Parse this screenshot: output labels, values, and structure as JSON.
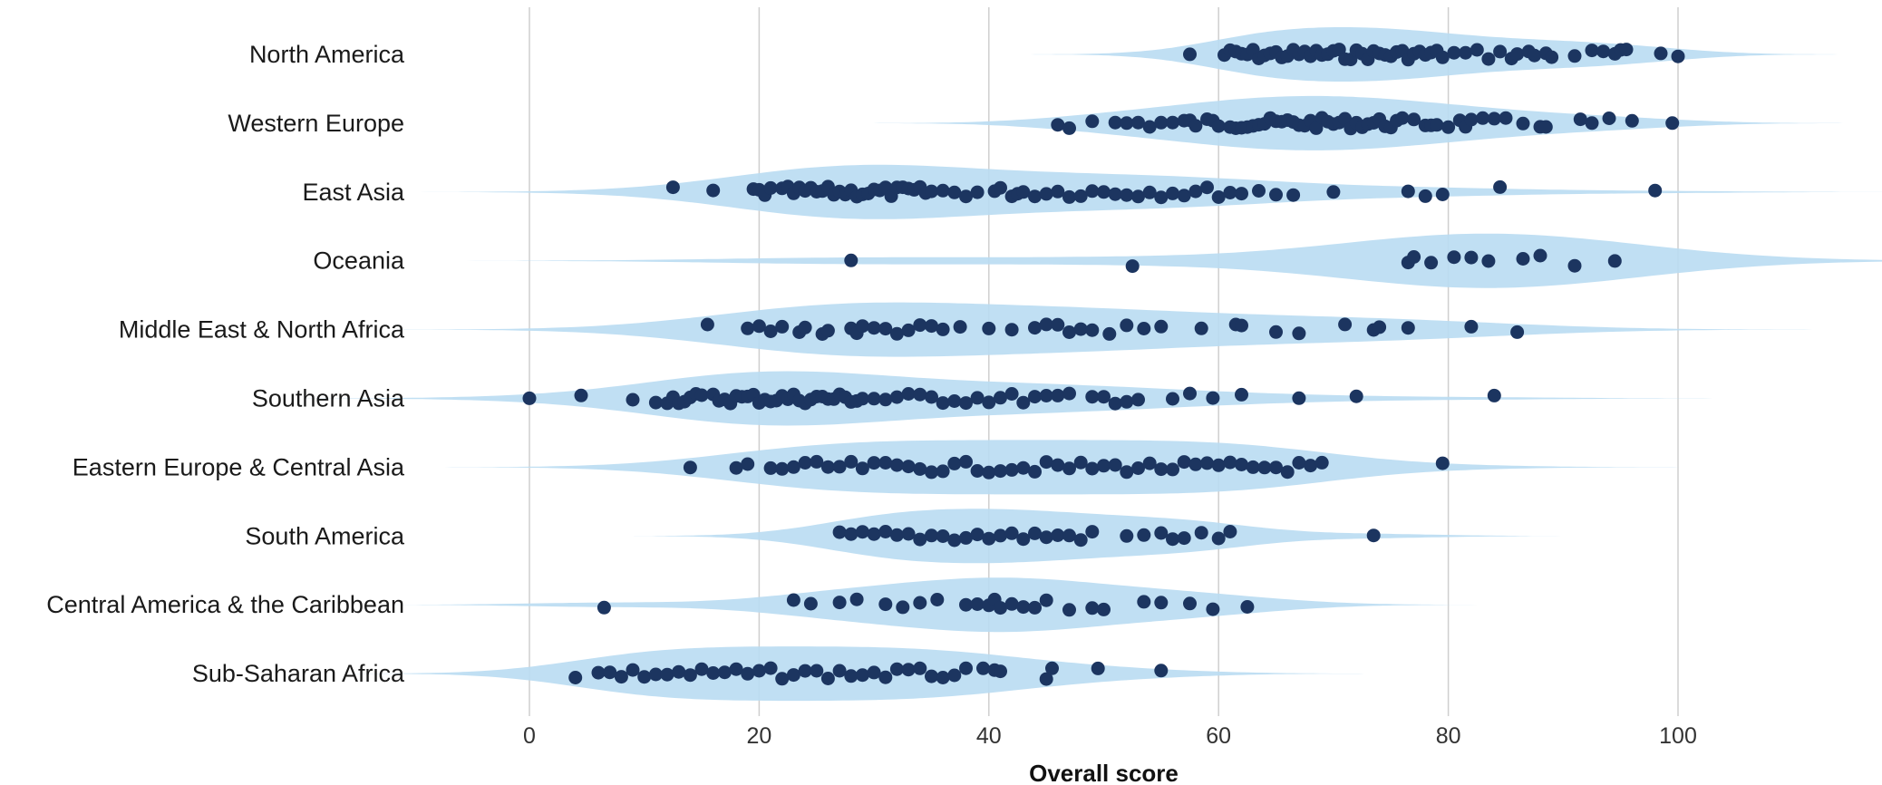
{
  "chart_data": {
    "type": "scatter",
    "subtype": "violin with jittered points",
    "title": "",
    "xlabel": "Overall score",
    "ylabel": "",
    "xlim": [
      -5,
      117
    ],
    "xticks": [
      0,
      20,
      40,
      60,
      80,
      100
    ],
    "grid": "vertical",
    "legend": "none",
    "colors": {
      "point": "#1c3560",
      "violin": "#b9dcf2",
      "grid": "#cfcfcf"
    },
    "series": [
      {
        "category": "North America",
        "peak": 70,
        "values": [
          57.5,
          60.5,
          61,
          61.5,
          62,
          62.5,
          63,
          63.5,
          64,
          64.5,
          65,
          65.5,
          66,
          66.5,
          67,
          67.5,
          68,
          68.5,
          69,
          69.5,
          70,
          70.5,
          71,
          71.5,
          72,
          72.5,
          73,
          73.5,
          74,
          74.5,
          75,
          75.5,
          76,
          76.5,
          77,
          77.5,
          78,
          78.5,
          79,
          79.5,
          80.5,
          81.5,
          82.5,
          83.5,
          84.5,
          85.5,
          86,
          87,
          87.5,
          88.5,
          89,
          91,
          92.5,
          93.5,
          94.5,
          95,
          95.5,
          98.5,
          100
        ]
      },
      {
        "category": "Western Europe",
        "peak": 66,
        "values": [
          46,
          47,
          49,
          51,
          52,
          53,
          54,
          55,
          56,
          57,
          57.5,
          58,
          59,
          59.5,
          60,
          61,
          61.5,
          62,
          62.5,
          63,
          63.5,
          64,
          64.5,
          65,
          65.5,
          66,
          66.5,
          67,
          67.5,
          68,
          68.5,
          69,
          69.5,
          70,
          70.5,
          71,
          71.5,
          72,
          72.5,
          73,
          73.5,
          74,
          74.5,
          75,
          75.5,
          76,
          77,
          78,
          78.5,
          79,
          80,
          81,
          81.5,
          82,
          83,
          84,
          85,
          86.5,
          88,
          88.5,
          91.5,
          92.5,
          94,
          96,
          99.5
        ]
      },
      {
        "category": "East Asia",
        "peak": 30,
        "values": [
          12.5,
          16,
          19.5,
          20,
          20.5,
          21,
          22,
          22.5,
          23,
          23.5,
          24,
          24.5,
          25,
          25.5,
          26,
          26.5,
          27,
          27.5,
          28,
          28.5,
          29,
          29.5,
          30,
          30.5,
          31,
          31.5,
          32,
          32.5,
          33,
          33.5,
          34,
          34.5,
          35,
          36,
          37,
          38,
          39,
          40.5,
          41,
          42,
          42.5,
          43,
          44,
          45,
          46,
          47,
          48,
          49,
          50,
          51,
          52,
          53,
          54,
          55,
          56,
          57,
          58,
          59,
          60,
          61,
          62,
          63.5,
          65,
          66.5,
          70,
          76.5,
          78,
          79.5,
          84.5,
          98
        ]
      },
      {
        "category": "Oceania",
        "peak": 85,
        "values": [
          28,
          52.5,
          76.5,
          77,
          78.5,
          80.5,
          82,
          83.5,
          86.5,
          88,
          91,
          94.5
        ]
      },
      {
        "category": "Middle East & North Africa",
        "peak": 30,
        "values": [
          15.5,
          19,
          20,
          21,
          22,
          23.5,
          24,
          25.5,
          26,
          28,
          28.5,
          29,
          30,
          31,
          32,
          33,
          34,
          35,
          36,
          37.5,
          40,
          42,
          44,
          45,
          46,
          47,
          48,
          49,
          50.5,
          52,
          53.5,
          55,
          58.5,
          61.5,
          62,
          65,
          67,
          71,
          73.5,
          74,
          76.5,
          82,
          86
        ]
      },
      {
        "category": "Southern Asia",
        "peak": 25,
        "values": [
          0,
          4.5,
          9,
          11,
          12,
          12.5,
          13,
          13.5,
          14,
          14.5,
          15,
          16,
          16.5,
          17,
          17.5,
          18,
          18.5,
          19,
          19.5,
          20,
          20.5,
          21,
          21.5,
          22,
          22.5,
          23,
          23.5,
          24,
          24.5,
          25,
          25.5,
          26,
          26.5,
          27,
          27.5,
          28,
          28.5,
          29,
          30,
          31,
          32,
          33,
          34,
          35,
          36,
          37,
          38,
          39,
          40,
          41,
          42,
          43,
          44,
          45,
          46,
          47,
          49,
          50,
          51,
          52,
          53,
          56,
          57.5,
          59.5,
          62,
          67,
          72,
          84
        ]
      },
      {
        "category": "Eastern Europe & Central Asia",
        "peak": 40,
        "values": [
          14,
          18,
          19,
          21,
          22,
          23,
          24,
          25,
          26,
          27,
          28,
          29,
          30,
          31,
          32,
          33,
          34,
          35,
          36,
          37,
          38,
          39,
          40,
          41,
          42,
          43,
          44,
          45,
          46,
          47,
          48,
          49,
          50,
          51,
          52,
          53,
          54,
          55,
          56,
          57,
          58,
          59,
          60,
          61,
          62,
          63,
          64,
          65,
          66,
          67,
          68,
          69,
          79.5
        ]
      },
      {
        "category": "South America",
        "peak": 40,
        "values": [
          27,
          28,
          29,
          30,
          31,
          32,
          33,
          34,
          35,
          36,
          37,
          38,
          39,
          40,
          41,
          42,
          43,
          44,
          45,
          46,
          47,
          48,
          49,
          52,
          53.5,
          55,
          56,
          57,
          58.5,
          60,
          61,
          73.5
        ]
      },
      {
        "category": "Central America & the Caribbean",
        "peak": 40,
        "values": [
          6.5,
          23,
          24.5,
          27,
          28.5,
          31,
          32.5,
          34,
          35.5,
          38,
          39,
          40,
          40.5,
          41,
          42,
          43,
          44,
          45,
          47,
          49,
          50,
          53.5,
          55,
          57.5,
          59.5,
          62.5
        ]
      },
      {
        "category": "Sub-Saharan Africa",
        "peak": 19,
        "values": [
          4,
          6,
          7,
          8,
          9,
          10,
          11,
          12,
          13,
          14,
          15,
          16,
          17,
          18,
          19,
          20,
          21,
          22,
          23,
          24,
          25,
          26,
          27,
          28,
          29,
          30,
          31,
          32,
          33,
          34,
          35,
          36,
          37,
          38,
          39.5,
          40.5,
          41,
          45,
          45.5,
          49.5,
          55
        ]
      }
    ]
  }
}
